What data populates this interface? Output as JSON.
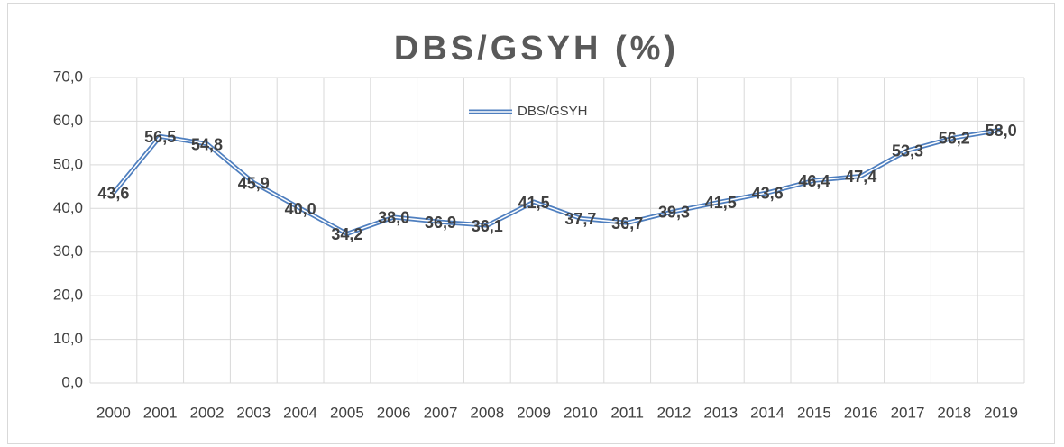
{
  "chart_data": {
    "type": "line",
    "title": "DBS/GSYH (%)",
    "categories": [
      "2000",
      "2001",
      "2002",
      "2003",
      "2004",
      "2005",
      "2006",
      "2007",
      "2008",
      "2009",
      "2010",
      "2011",
      "2012",
      "2013",
      "2014",
      "2015",
      "2016",
      "2017",
      "2018",
      "2019"
    ],
    "series": [
      {
        "name": "DBS/GSYH",
        "color": "#4f7fbf",
        "values": [
          43.6,
          56.5,
          54.8,
          45.9,
          40.0,
          34.2,
          38.0,
          36.9,
          36.1,
          41.5,
          37.7,
          36.7,
          39.3,
          41.5,
          43.6,
          46.4,
          47.4,
          53.3,
          56.2,
          58.0
        ],
        "value_labels": [
          "43,6",
          "56,5",
          "54,8",
          "45,9",
          "40,0",
          "34,2",
          "38,0",
          "36,9",
          "36,1",
          "41,5",
          "37,7",
          "36,7",
          "39,3",
          "41,5",
          "43,6",
          "46,4",
          "47,4",
          "53,3",
          "56,2",
          "58,0"
        ]
      }
    ],
    "ylim": [
      0,
      70
    ],
    "yticks": [
      {
        "value": 0,
        "label": "0,0"
      },
      {
        "value": 10,
        "label": "10,0"
      },
      {
        "value": 20,
        "label": "20,0"
      },
      {
        "value": 30,
        "label": "30,0"
      },
      {
        "value": 40,
        "label": "40,0"
      },
      {
        "value": 50,
        "label": "50,0"
      },
      {
        "value": 60,
        "label": "60,0"
      },
      {
        "value": 70,
        "label": "70,0"
      }
    ],
    "grid": true,
    "legend": "top"
  }
}
